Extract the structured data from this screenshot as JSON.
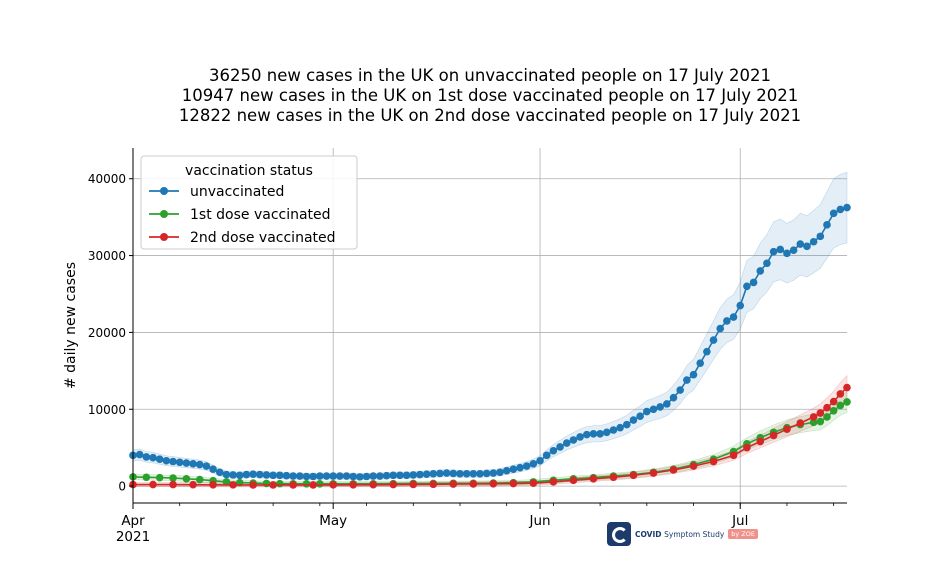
{
  "titles": [
    "36250 new cases in the UK on unvaccinated people on 17 July 2021",
    "10947 new cases in the UK on 1st dose vaccinated people on 17 July 2021",
    "12822 new cases in the UK on 2nd dose vaccinated people on 17 July 2021"
  ],
  "logo": {
    "name": "COVID",
    "subname": "Symptom Study",
    "badge": "by ZOE"
  },
  "chart_data": {
    "type": "line",
    "ylabel": "# daily new cases",
    "xlim": [
      "2021-04-01",
      "2021-07-17"
    ],
    "ylim": [
      -2200,
      44000
    ],
    "yticks": [
      0,
      10000,
      20000,
      30000,
      40000
    ],
    "xticks": [
      {
        "date": "2021-04-01",
        "label": "Apr",
        "sublabel": "2021"
      },
      {
        "date": "2021-05-01",
        "label": "May",
        "sublabel": ""
      },
      {
        "date": "2021-06-01",
        "label": "Jun",
        "sublabel": ""
      },
      {
        "date": "2021-07-01",
        "label": "Jul",
        "sublabel": ""
      }
    ],
    "grid": true,
    "legend": {
      "title": "vaccination status",
      "position": "top-left"
    },
    "series": [
      {
        "name": "unvaccinated",
        "color": "#1f77b4",
        "band_relative_width": 0.12,
        "points": [
          [
            "2021-04-01",
            4000
          ],
          [
            "2021-04-02",
            4100
          ],
          [
            "2021-04-03",
            3800
          ],
          [
            "2021-04-04",
            3700
          ],
          [
            "2021-04-05",
            3500
          ],
          [
            "2021-04-06",
            3300
          ],
          [
            "2021-04-07",
            3200
          ],
          [
            "2021-04-08",
            3100
          ],
          [
            "2021-04-09",
            3000
          ],
          [
            "2021-04-10",
            2900
          ],
          [
            "2021-04-11",
            2800
          ],
          [
            "2021-04-12",
            2600
          ],
          [
            "2021-04-13",
            2200
          ],
          [
            "2021-04-14",
            1800
          ],
          [
            "2021-04-15",
            1500
          ],
          [
            "2021-04-16",
            1450
          ],
          [
            "2021-04-17",
            1400
          ],
          [
            "2021-04-18",
            1500
          ],
          [
            "2021-04-19",
            1550
          ],
          [
            "2021-04-20",
            1500
          ],
          [
            "2021-04-21",
            1450
          ],
          [
            "2021-04-22",
            1400
          ],
          [
            "2021-04-23",
            1400
          ],
          [
            "2021-04-24",
            1350
          ],
          [
            "2021-04-25",
            1300
          ],
          [
            "2021-04-26",
            1300
          ],
          [
            "2021-04-27",
            1250
          ],
          [
            "2021-04-28",
            1250
          ],
          [
            "2021-04-29",
            1300
          ],
          [
            "2021-04-30",
            1300
          ],
          [
            "2021-05-01",
            1300
          ],
          [
            "2021-05-02",
            1300
          ],
          [
            "2021-05-03",
            1300
          ],
          [
            "2021-05-04",
            1250
          ],
          [
            "2021-05-05",
            1200
          ],
          [
            "2021-05-06",
            1250
          ],
          [
            "2021-05-07",
            1300
          ],
          [
            "2021-05-08",
            1300
          ],
          [
            "2021-05-09",
            1350
          ],
          [
            "2021-05-10",
            1400
          ],
          [
            "2021-05-11",
            1400
          ],
          [
            "2021-05-12",
            1400
          ],
          [
            "2021-05-13",
            1450
          ],
          [
            "2021-05-14",
            1500
          ],
          [
            "2021-05-15",
            1550
          ],
          [
            "2021-05-16",
            1600
          ],
          [
            "2021-05-17",
            1650
          ],
          [
            "2021-05-18",
            1700
          ],
          [
            "2021-05-19",
            1650
          ],
          [
            "2021-05-20",
            1600
          ],
          [
            "2021-05-21",
            1600
          ],
          [
            "2021-05-22",
            1600
          ],
          [
            "2021-05-23",
            1600
          ],
          [
            "2021-05-24",
            1650
          ],
          [
            "2021-05-25",
            1700
          ],
          [
            "2021-05-26",
            1800
          ],
          [
            "2021-05-27",
            2000
          ],
          [
            "2021-05-28",
            2200
          ],
          [
            "2021-05-29",
            2400
          ],
          [
            "2021-05-30",
            2600
          ],
          [
            "2021-05-31",
            2900
          ],
          [
            "2021-06-01",
            3300
          ],
          [
            "2021-06-02",
            4000
          ],
          [
            "2021-06-03",
            4600
          ],
          [
            "2021-06-04",
            5100
          ],
          [
            "2021-06-05",
            5600
          ],
          [
            "2021-06-06",
            6000
          ],
          [
            "2021-06-07",
            6400
          ],
          [
            "2021-06-08",
            6700
          ],
          [
            "2021-06-09",
            6800
          ],
          [
            "2021-06-10",
            6800
          ],
          [
            "2021-06-11",
            7000
          ],
          [
            "2021-06-12",
            7300
          ],
          [
            "2021-06-13",
            7600
          ],
          [
            "2021-06-14",
            8000
          ],
          [
            "2021-06-15",
            8600
          ],
          [
            "2021-06-16",
            9100
          ],
          [
            "2021-06-17",
            9700
          ],
          [
            "2021-06-18",
            10000
          ],
          [
            "2021-06-19",
            10300
          ],
          [
            "2021-06-20",
            10700
          ],
          [
            "2021-06-21",
            11500
          ],
          [
            "2021-06-22",
            12500
          ],
          [
            "2021-06-23",
            13800
          ],
          [
            "2021-06-24",
            14500
          ],
          [
            "2021-06-25",
            16000
          ],
          [
            "2021-06-26",
            17500
          ],
          [
            "2021-06-27",
            19000
          ],
          [
            "2021-06-28",
            20500
          ],
          [
            "2021-06-29",
            21500
          ],
          [
            "2021-06-30",
            22000
          ],
          [
            "2021-07-01",
            23500
          ],
          [
            "2021-07-02",
            26000
          ],
          [
            "2021-07-03",
            26500
          ],
          [
            "2021-07-04",
            28000
          ],
          [
            "2021-07-05",
            29000
          ],
          [
            "2021-07-06",
            30500
          ],
          [
            "2021-07-07",
            30800
          ],
          [
            "2021-07-08",
            30300
          ],
          [
            "2021-07-09",
            30700
          ],
          [
            "2021-07-10",
            31500
          ],
          [
            "2021-07-11",
            31200
          ],
          [
            "2021-07-12",
            31800
          ],
          [
            "2021-07-13",
            32500
          ],
          [
            "2021-07-14",
            34000
          ],
          [
            "2021-07-15",
            35500
          ],
          [
            "2021-07-16",
            36000
          ],
          [
            "2021-07-17",
            36250
          ]
        ]
      },
      {
        "name": "1st dose vaccinated",
        "color": "#2ca02c",
        "band_relative_width": 0.1,
        "points": [
          [
            "2021-04-01",
            1200
          ],
          [
            "2021-04-03",
            1150
          ],
          [
            "2021-04-05",
            1100
          ],
          [
            "2021-04-07",
            1050
          ],
          [
            "2021-04-09",
            950
          ],
          [
            "2021-04-11",
            850
          ],
          [
            "2021-04-13",
            700
          ],
          [
            "2021-04-15",
            550
          ],
          [
            "2021-04-17",
            450
          ],
          [
            "2021-04-19",
            400
          ],
          [
            "2021-04-21",
            350
          ],
          [
            "2021-04-23",
            320
          ],
          [
            "2021-04-25",
            300
          ],
          [
            "2021-04-27",
            300
          ],
          [
            "2021-04-29",
            300
          ],
          [
            "2021-05-01",
            300
          ],
          [
            "2021-05-04",
            300
          ],
          [
            "2021-05-07",
            300
          ],
          [
            "2021-05-10",
            320
          ],
          [
            "2021-05-13",
            340
          ],
          [
            "2021-05-16",
            350
          ],
          [
            "2021-05-19",
            360
          ],
          [
            "2021-05-22",
            370
          ],
          [
            "2021-05-25",
            400
          ],
          [
            "2021-05-28",
            450
          ],
          [
            "2021-05-31",
            550
          ],
          [
            "2021-06-03",
            750
          ],
          [
            "2021-06-06",
            950
          ],
          [
            "2021-06-09",
            1100
          ],
          [
            "2021-06-12",
            1300
          ],
          [
            "2021-06-15",
            1500
          ],
          [
            "2021-06-18",
            1800
          ],
          [
            "2021-06-21",
            2200
          ],
          [
            "2021-06-24",
            2800
          ],
          [
            "2021-06-27",
            3500
          ],
          [
            "2021-06-30",
            4500
          ],
          [
            "2021-07-02",
            5500
          ],
          [
            "2021-07-04",
            6300
          ],
          [
            "2021-07-06",
            7000
          ],
          [
            "2021-07-08",
            7600
          ],
          [
            "2021-07-10",
            8000
          ],
          [
            "2021-07-12",
            8300
          ],
          [
            "2021-07-13",
            8400
          ],
          [
            "2021-07-14",
            9000
          ],
          [
            "2021-07-15",
            9800
          ],
          [
            "2021-07-16",
            10500
          ],
          [
            "2021-07-17",
            10947
          ]
        ]
      },
      {
        "name": "2nd dose vaccinated",
        "color": "#d62728",
        "band_relative_width": 0.1,
        "points": [
          [
            "2021-04-01",
            200
          ],
          [
            "2021-04-04",
            200
          ],
          [
            "2021-04-07",
            200
          ],
          [
            "2021-04-10",
            180
          ],
          [
            "2021-04-13",
            170
          ],
          [
            "2021-04-16",
            160
          ],
          [
            "2021-04-19",
            150
          ],
          [
            "2021-04-22",
            150
          ],
          [
            "2021-04-25",
            150
          ],
          [
            "2021-04-28",
            150
          ],
          [
            "2021-05-01",
            160
          ],
          [
            "2021-05-04",
            170
          ],
          [
            "2021-05-07",
            180
          ],
          [
            "2021-05-10",
            200
          ],
          [
            "2021-05-13",
            220
          ],
          [
            "2021-05-16",
            240
          ],
          [
            "2021-05-19",
            260
          ],
          [
            "2021-05-22",
            280
          ],
          [
            "2021-05-25",
            300
          ],
          [
            "2021-05-28",
            330
          ],
          [
            "2021-05-31",
            380
          ],
          [
            "2021-06-03",
            550
          ],
          [
            "2021-06-06",
            750
          ],
          [
            "2021-06-09",
            950
          ],
          [
            "2021-06-12",
            1150
          ],
          [
            "2021-06-15",
            1400
          ],
          [
            "2021-06-18",
            1700
          ],
          [
            "2021-06-21",
            2100
          ],
          [
            "2021-06-24",
            2600
          ],
          [
            "2021-06-27",
            3200
          ],
          [
            "2021-06-30",
            4000
          ],
          [
            "2021-07-02",
            5000
          ],
          [
            "2021-07-04",
            5800
          ],
          [
            "2021-07-06",
            6600
          ],
          [
            "2021-07-08",
            7400
          ],
          [
            "2021-07-10",
            8200
          ],
          [
            "2021-07-12",
            9000
          ],
          [
            "2021-07-13",
            9500
          ],
          [
            "2021-07-14",
            10200
          ],
          [
            "2021-07-15",
            11000
          ],
          [
            "2021-07-16",
            12000
          ],
          [
            "2021-07-17",
            12822
          ]
        ]
      }
    ]
  }
}
